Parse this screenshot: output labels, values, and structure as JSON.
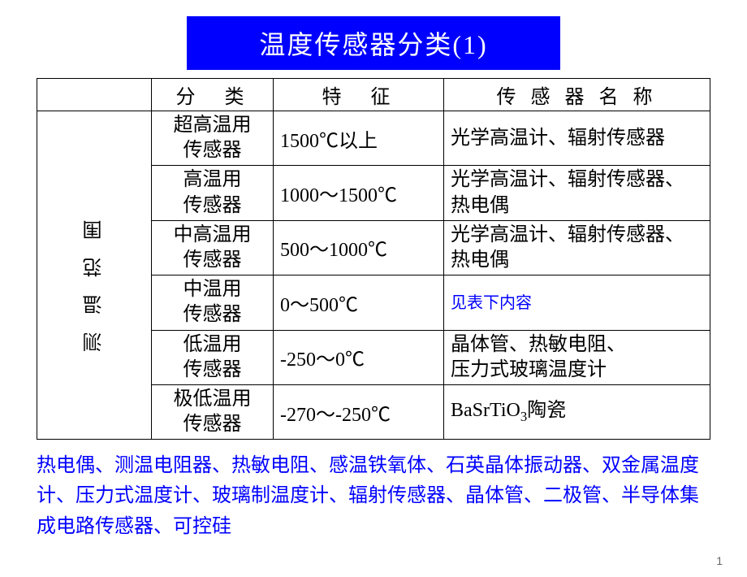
{
  "title": "温度传感器分类(1)",
  "title_style": {
    "bg": "#0000ff",
    "fg": "#ffffff",
    "fontsize": 32
  },
  "table": {
    "header": {
      "col1": "分　类",
      "col2": "特　征",
      "col3": "传 感 器 名 称"
    },
    "vheader": "测温范围",
    "rows": [
      {
        "category": "超高温用\n传感器",
        "spec": "1500℃以上",
        "name": "光学高温计、辐射传感器"
      },
      {
        "category": "高温用\n传感器",
        "spec": "1000～1500℃",
        "name": "光学高温计、辐射传感器、\n热电偶"
      },
      {
        "category": "中高温用\n传感器",
        "spec": "500～1000℃",
        "name": "光学高温计、辐射传感器、\n热电偶"
      },
      {
        "category": "中温用\n传感器",
        "spec": "0～500℃",
        "name_note": "见表下内容",
        "is_note": true
      },
      {
        "category": "低温用\n传感器",
        "spec": "-250～0℃",
        "name": "晶体管、热敏电阻、\n压力式玻璃温度计"
      },
      {
        "category": "极低温用\n传感器",
        "spec": "-270～-250℃",
        "name_html": "BaSrTiO<sub>3</sub>陶瓷"
      }
    ]
  },
  "footer": "热电偶、测温电阻器、热敏电阻、感温铁氧体、石英晶体振动器、双金属温度计、压力式温度计、玻璃制温度计、辐射传感器、晶体管、二极管、半导体集成电路传感器、可控硅",
  "page_number": "1",
  "colors": {
    "text": "#000000",
    "accent": "#0000ff",
    "border": "#000000",
    "bg": "#ffffff"
  }
}
